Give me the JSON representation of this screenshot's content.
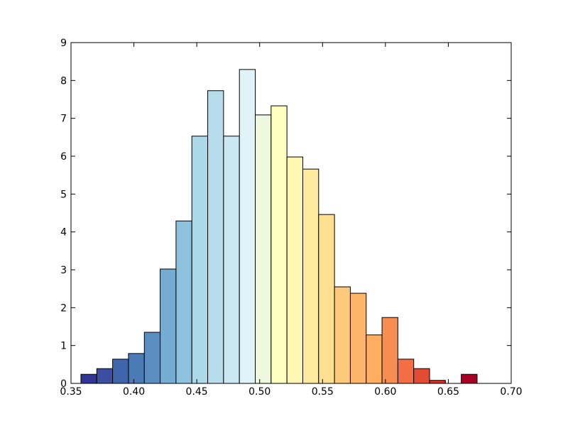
{
  "chart_data": {
    "type": "histogram",
    "bins": [
      0.3579,
      0.3705,
      0.3831,
      0.3957,
      0.4083,
      0.4209,
      0.4335,
      0.4461,
      0.4587,
      0.4713,
      0.4839,
      0.4965,
      0.5091,
      0.5217,
      0.5343,
      0.5469,
      0.5595,
      0.5721,
      0.5847,
      0.5973,
      0.6099,
      0.6225,
      0.6351,
      0.6477,
      0.6603,
      0.6729
    ],
    "counts": [
      0.24,
      0.39,
      0.64,
      0.79,
      1.35,
      3.02,
      4.29,
      6.53,
      7.73,
      6.53,
      8.29,
      7.09,
      7.33,
      5.98,
      5.66,
      4.46,
      2.55,
      2.38,
      1.28,
      1.74,
      0.64,
      0.39,
      0.08,
      0,
      0.24
    ],
    "colors": [
      "#313695",
      "#3c4ea0",
      "#4065ad",
      "#4a7bb7",
      "#5b8ec0",
      "#74add1",
      "#8fc3dd",
      "#abd9e9",
      "#b7dceb",
      "#c9e8f2",
      "#e0f3f8",
      "#edf8df",
      "#ffffbf",
      "#fff7b2",
      "#fee99d",
      "#fee090",
      "#fdc97a",
      "#fdb567",
      "#fdae61",
      "#f88d52",
      "#f46d43",
      "#e34a33",
      "#d73027",
      "#c72027",
      "#a50026"
    ],
    "xlim": [
      0.35,
      0.7
    ],
    "ylim": [
      0,
      9
    ],
    "xticks": [
      0.35,
      {
        "value": 0.4,
        "label": "0.40"
      },
      0.45,
      {
        "value": 0.5,
        "label": "0.50"
      },
      0.55,
      {
        "value": 0.6,
        "label": "0.60"
      },
      0.65,
      {
        "value": 0.7,
        "label": "0.70"
      }
    ],
    "yticks": [
      0,
      1,
      2,
      3,
      4,
      5,
      6,
      7,
      8,
      9
    ]
  }
}
